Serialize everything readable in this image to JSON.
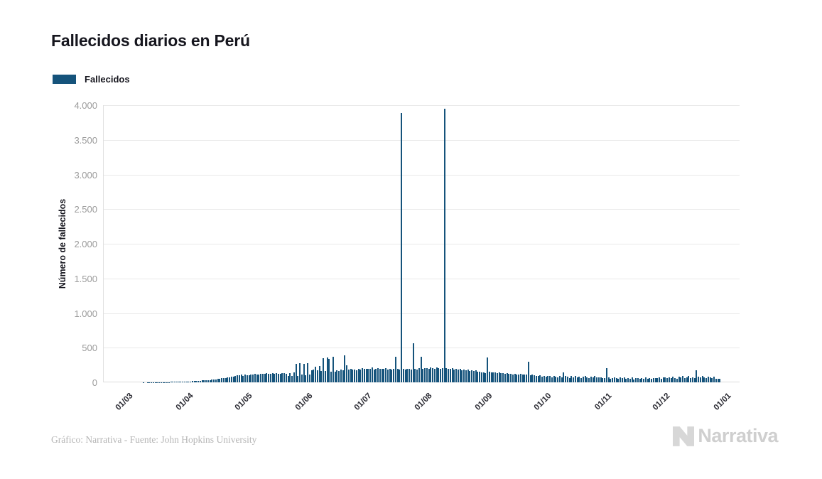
{
  "header": {
    "title": "Fallecidos diarios en Perú"
  },
  "legend": {
    "items": [
      {
        "label": "Fallecidos",
        "color": "#15537B"
      }
    ]
  },
  "chart_data": {
    "type": "bar",
    "title": "Fallecidos diarios en Perú",
    "xlabel": "",
    "ylabel": "Número de fallecidos",
    "ylim": [
      0,
      4000
    ],
    "grid": "horizontal",
    "legend_position": "top-left",
    "bar_color": "#15537B",
    "grid_color": "#e9e9e9",
    "axis_color": "#e0e0e0",
    "ytick_color": "#9b9b9b",
    "xtick_color": "#2b2b33",
    "ytick_values": [
      0,
      500,
      1000,
      1500,
      2000,
      2500,
      3000,
      3500,
      4000
    ],
    "ytick_labels": [
      "0",
      "500",
      "1.000",
      "1.500",
      "2.000",
      "2.500",
      "3.000",
      "3.500",
      "4.000"
    ],
    "x_tick_labels": [
      "01/03",
      "01/04",
      "01/05",
      "01/06",
      "01/07",
      "01/08",
      "01/09",
      "01/10",
      "01/11",
      "01/12",
      "01/01"
    ],
    "x_tick_day_index": [
      0,
      31,
      61,
      92,
      122,
      153,
      184,
      214,
      245,
      275,
      306
    ],
    "start_date": "2020-03-01",
    "frequency": "daily",
    "series": [
      {
        "name": "Fallecidos",
        "color": "#15537B",
        "values": [
          0,
          0,
          0,
          0,
          0,
          0,
          0,
          0,
          0,
          0,
          0,
          0,
          1,
          0,
          1,
          1,
          2,
          2,
          3,
          3,
          2,
          3,
          4,
          4,
          5,
          5,
          6,
          6,
          7,
          8,
          9,
          9,
          11,
          13,
          10,
          14,
          15,
          17,
          16,
          19,
          22,
          24,
          26,
          28,
          30,
          33,
          35,
          38,
          40,
          44,
          48,
          52,
          57,
          62,
          66,
          70,
          75,
          80,
          86,
          92,
          98,
          103,
          108,
          96,
          112,
          104,
          99,
          108,
          115,
          122,
          110,
          117,
          125,
          120,
          128,
          133,
          126,
          119,
          130,
          124,
          135,
          128,
          122,
          131,
          138,
          128,
          90,
          135,
          95,
          140,
          270,
          95,
          272,
          110,
          268,
          105,
          274,
          115,
          178,
          185,
          230,
          172,
          240,
          165,
          345,
          160,
          355,
          340,
          150,
          365,
          155,
          175,
          168,
          180,
          175,
          385,
          250,
          185,
          190,
          180,
          185,
          178,
          196,
          188,
          205,
          198,
          192,
          200,
          195,
          215,
          188,
          196,
          202,
          190,
          198,
          193,
          205,
          185,
          192,
          188,
          196,
          370,
          190,
          185,
          3887,
          195,
          188,
          198,
          192,
          186,
          560,
          194,
          188,
          205,
          370,
          198,
          210,
          202,
          195,
          215,
          208,
          200,
          218,
          205,
          198,
          210,
          3950,
          208,
          198,
          192,
          205,
          188,
          196,
          182,
          190,
          178,
          185,
          172,
          180,
          168,
          175,
          162,
          170,
          158,
          150,
          143,
          148,
          138,
          355,
          152,
          145,
          140,
          148,
          135,
          142,
          130,
          138,
          125,
          133,
          120,
          128,
          115,
          122,
          118,
          112,
          120,
          108,
          115,
          110,
          298,
          105,
          112,
          100,
          96,
          92,
          98,
          85,
          90,
          78,
          95,
          88,
          72,
          90,
          82,
          75,
          88,
          70,
          142,
          95,
          80,
          65,
          88,
          75,
          92,
          68,
          85,
          60,
          78,
          90,
          72,
          65,
          82,
          70,
          88,
          75,
          68,
          72,
          58,
          65,
          208,
          70,
          55,
          62,
          75,
          60,
          52,
          68,
          58,
          72,
          48,
          62,
          55,
          70,
          45,
          58,
          65,
          50,
          62,
          55,
          68,
          48,
          60,
          52,
          65,
          58,
          62,
          70,
          55,
          68,
          75,
          58,
          72,
          60,
          78,
          65,
          55,
          85,
          70,
          92,
          60,
          75,
          88,
          58,
          72,
          65,
          178,
          80,
          68,
          92,
          75,
          58,
          85,
          70,
          62,
          78,
          55,
          52,
          48
        ]
      }
    ]
  },
  "footer": {
    "credit": "Gráfico: Narrativa - Fuente: John Hopkins University",
    "brand": "Narrativa"
  }
}
